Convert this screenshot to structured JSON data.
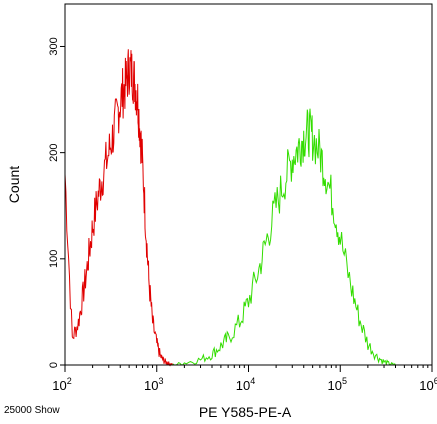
{
  "chart_data": {
    "type": "line",
    "title": "",
    "xlabel": "PE Y585-PE-A",
    "ylabel": "Count",
    "footnote": "25000 Show",
    "x_scale": "log",
    "xlim": [
      100,
      1000000
    ],
    "ylim": [
      0,
      340
    ],
    "x_ticks": [
      {
        "base": "10",
        "exp": "2"
      },
      {
        "base": "10",
        "exp": "3"
      },
      {
        "base": "10",
        "exp": "4"
      },
      {
        "base": "10",
        "exp": "5"
      },
      {
        "base": "10",
        "exp": "6"
      }
    ],
    "y_ticks": [
      "0",
      "100",
      "200",
      "300"
    ],
    "series": [
      {
        "color": "#e00000",
        "x": [
          100,
          120,
          140,
          160,
          180,
          200,
          230,
          260,
          300,
          340,
          380,
          420,
          460,
          500,
          540,
          580,
          620,
          660,
          700,
          760,
          820,
          900,
          1000,
          1100,
          1200,
          1300,
          1400,
          1500
        ],
        "y": [
          180,
          25,
          40,
          70,
          100,
          130,
          160,
          180,
          200,
          220,
          240,
          255,
          265,
          280,
          275,
          265,
          250,
          220,
          190,
          130,
          80,
          40,
          20,
          8,
          4,
          2,
          1,
          0
        ]
      },
      {
        "color": "#33dd00",
        "x": [
          1500,
          2000,
          3000,
          4000,
          5000,
          6000,
          8000,
          10000,
          13000,
          16000,
          20000,
          25000,
          30000,
          35000,
          40000,
          45000,
          50000,
          60000,
          70000,
          85000,
          100000,
          130000,
          160000,
          200000,
          250000,
          300000,
          350000,
          400000
        ],
        "y": [
          0,
          2,
          5,
          10,
          18,
          25,
          40,
          60,
          90,
          120,
          150,
          175,
          195,
          205,
          215,
          220,
          215,
          200,
          180,
          150,
          120,
          75,
          45,
          20,
          8,
          3,
          1,
          0
        ]
      }
    ]
  }
}
